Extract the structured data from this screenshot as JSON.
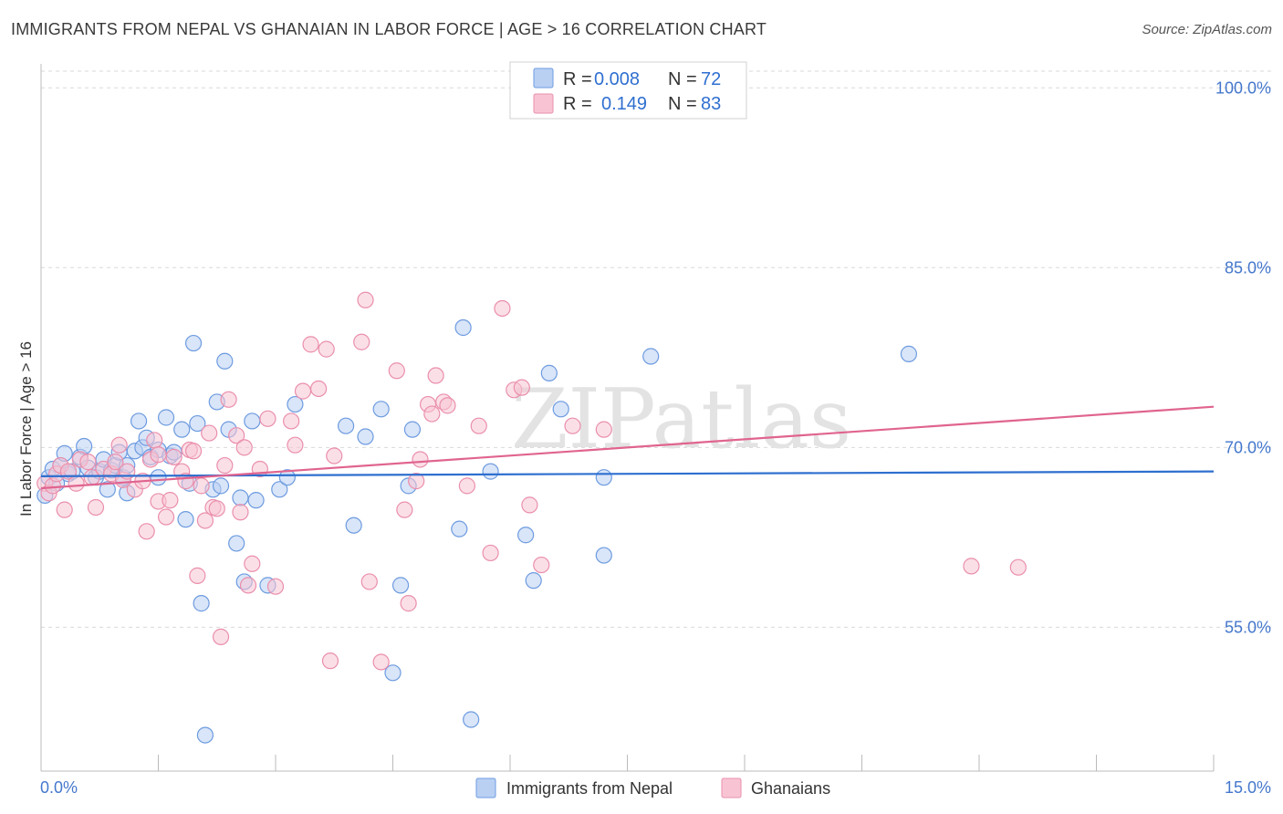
{
  "title": "IMMIGRANTS FROM NEPAL VS GHANAIAN IN LABOR FORCE | AGE > 16 CORRELATION CHART",
  "source": "Source: ZipAtlas.com",
  "watermark": "ZIPatlas",
  "colors": {
    "nepal_fill": "#b9d0f3",
    "nepal_stroke": "#6d9be0",
    "nepal_line": "#2e6fcf",
    "ghana_fill": "#f8c4d4",
    "ghana_stroke": "#ea8fac",
    "ghana_line": "#e0648f",
    "tick_label": "#4477cc",
    "grid": "#d9d9d9"
  },
  "legend": {
    "rows": [
      {
        "r_label": "R =",
        "r_value": "0.008",
        "n_label": "N =",
        "n_value": "72",
        "series": "nepal"
      },
      {
        "r_label": "R =",
        "r_value": "0.149",
        "n_label": "N =",
        "n_value": "83",
        "series": "ghana"
      }
    ]
  },
  "chart_data": {
    "type": "scatter",
    "title": "IMMIGRANTS FROM NEPAL VS GHANAIAN IN LABOR FORCE | AGE > 16 CORRELATION CHART",
    "xlabel": "",
    "ylabel": "In Labor Force | Age > 16",
    "xlim": [
      0,
      15
    ],
    "ylim": [
      43,
      102
    ],
    "x_tick_labels": [
      "0.0%",
      "15.0%"
    ],
    "y_ticks": [
      55,
      70,
      85,
      100
    ],
    "y_tick_labels": [
      "55.0%",
      "70.0%",
      "85.0%",
      "100.0%"
    ],
    "grid": true,
    "legend_position": "top-center",
    "series": [
      {
        "name": "Immigrants from Nepal",
        "r": 0.008,
        "n": 72,
        "trend": {
          "x": [
            0,
            15
          ],
          "y": [
            67.6,
            68.0
          ]
        },
        "points": [
          [
            0.05,
            66.0
          ],
          [
            0.1,
            67.5
          ],
          [
            0.15,
            68.2
          ],
          [
            0.2,
            67.0
          ],
          [
            0.25,
            68.5
          ],
          [
            0.3,
            69.5
          ],
          [
            0.35,
            67.8
          ],
          [
            0.4,
            68.0
          ],
          [
            0.5,
            69.2
          ],
          [
            0.55,
            70.1
          ],
          [
            0.6,
            68.3
          ],
          [
            0.7,
            67.5
          ],
          [
            0.75,
            68.0
          ],
          [
            0.8,
            69.0
          ],
          [
            0.85,
            66.5
          ],
          [
            0.9,
            68.1
          ],
          [
            0.95,
            68.5
          ],
          [
            1.0,
            69.6
          ],
          [
            1.05,
            67.5
          ],
          [
            1.1,
            68.5
          ],
          [
            1.1,
            66.2
          ],
          [
            1.2,
            69.7
          ],
          [
            1.25,
            72.2
          ],
          [
            1.3,
            70.0
          ],
          [
            1.35,
            70.8
          ],
          [
            1.4,
            69.2
          ],
          [
            1.5,
            69.8
          ],
          [
            1.5,
            67.5
          ],
          [
            1.6,
            72.5
          ],
          [
            1.65,
            69.3
          ],
          [
            1.7,
            69.6
          ],
          [
            1.8,
            71.5
          ],
          [
            1.85,
            64.0
          ],
          [
            1.9,
            67.0
          ],
          [
            1.95,
            78.7
          ],
          [
            2.0,
            72.0
          ],
          [
            2.05,
            57.0
          ],
          [
            2.1,
            46.0
          ],
          [
            2.2,
            66.5
          ],
          [
            2.25,
            73.8
          ],
          [
            2.3,
            66.8
          ],
          [
            2.35,
            77.2
          ],
          [
            2.4,
            71.5
          ],
          [
            2.5,
            62.0
          ],
          [
            2.55,
            65.8
          ],
          [
            2.6,
            58.8
          ],
          [
            2.7,
            72.2
          ],
          [
            2.75,
            65.6
          ],
          [
            2.9,
            58.5
          ],
          [
            3.05,
            66.5
          ],
          [
            3.15,
            67.5
          ],
          [
            3.25,
            73.6
          ],
          [
            3.9,
            71.8
          ],
          [
            4.0,
            63.5
          ],
          [
            4.15,
            70.9
          ],
          [
            4.35,
            73.2
          ],
          [
            4.5,
            51.2
          ],
          [
            4.6,
            58.5
          ],
          [
            4.7,
            66.8
          ],
          [
            4.75,
            71.5
          ],
          [
            5.35,
            63.2
          ],
          [
            5.4,
            80.0
          ],
          [
            5.5,
            47.3
          ],
          [
            5.75,
            68.0
          ],
          [
            6.2,
            62.7
          ],
          [
            6.3,
            58.9
          ],
          [
            6.5,
            76.2
          ],
          [
            6.65,
            73.2
          ],
          [
            7.2,
            61.0
          ],
          [
            7.2,
            67.5
          ],
          [
            7.8,
            77.6
          ],
          [
            11.1,
            77.8
          ]
        ]
      },
      {
        "name": "Ghanaians",
        "r": 0.149,
        "n": 83,
        "trend": {
          "x": [
            0,
            15
          ],
          "y": [
            66.6,
            73.4
          ]
        },
        "points": [
          [
            0.05,
            67.0
          ],
          [
            0.1,
            66.2
          ],
          [
            0.15,
            66.8
          ],
          [
            0.2,
            67.8
          ],
          [
            0.25,
            68.5
          ],
          [
            0.3,
            64.8
          ],
          [
            0.35,
            68.0
          ],
          [
            0.45,
            67.0
          ],
          [
            0.5,
            69.0
          ],
          [
            0.6,
            68.8
          ],
          [
            0.65,
            67.5
          ],
          [
            0.7,
            65.0
          ],
          [
            0.8,
            68.2
          ],
          [
            0.9,
            67.8
          ],
          [
            0.95,
            68.8
          ],
          [
            1.0,
            70.2
          ],
          [
            1.05,
            67.3
          ],
          [
            1.1,
            68.0
          ],
          [
            1.2,
            66.5
          ],
          [
            1.3,
            67.2
          ],
          [
            1.35,
            63.0
          ],
          [
            1.4,
            69.0
          ],
          [
            1.45,
            70.6
          ],
          [
            1.5,
            69.4
          ],
          [
            1.5,
            65.5
          ],
          [
            1.6,
            64.2
          ],
          [
            1.65,
            65.6
          ],
          [
            1.7,
            69.2
          ],
          [
            1.8,
            68.0
          ],
          [
            1.85,
            67.2
          ],
          [
            1.9,
            69.8
          ],
          [
            1.95,
            69.7
          ],
          [
            2.0,
            59.3
          ],
          [
            2.05,
            66.8
          ],
          [
            2.1,
            63.9
          ],
          [
            2.15,
            71.2
          ],
          [
            2.2,
            65.0
          ],
          [
            2.25,
            64.9
          ],
          [
            2.3,
            54.2
          ],
          [
            2.35,
            68.5
          ],
          [
            2.4,
            74.0
          ],
          [
            2.5,
            71.0
          ],
          [
            2.55,
            64.6
          ],
          [
            2.6,
            70.0
          ],
          [
            2.65,
            58.5
          ],
          [
            2.7,
            60.3
          ],
          [
            2.8,
            68.2
          ],
          [
            2.9,
            72.4
          ],
          [
            3.0,
            58.4
          ],
          [
            3.2,
            72.2
          ],
          [
            3.25,
            70.2
          ],
          [
            3.35,
            74.7
          ],
          [
            3.45,
            78.6
          ],
          [
            3.55,
            74.9
          ],
          [
            3.65,
            78.2
          ],
          [
            3.7,
            52.2
          ],
          [
            3.75,
            69.3
          ],
          [
            4.1,
            78.8
          ],
          [
            4.15,
            82.3
          ],
          [
            4.2,
            58.8
          ],
          [
            4.35,
            52.1
          ],
          [
            4.55,
            76.4
          ],
          [
            4.65,
            64.8
          ],
          [
            4.7,
            57.0
          ],
          [
            4.8,
            67.2
          ],
          [
            4.85,
            69.0
          ],
          [
            4.95,
            73.6
          ],
          [
            5.0,
            72.8
          ],
          [
            5.05,
            76.0
          ],
          [
            5.15,
            73.8
          ],
          [
            5.2,
            73.5
          ],
          [
            5.45,
            66.8
          ],
          [
            5.6,
            71.8
          ],
          [
            5.75,
            61.2
          ],
          [
            5.9,
            81.6
          ],
          [
            6.05,
            74.8
          ],
          [
            6.15,
            75.0
          ],
          [
            6.25,
            65.2
          ],
          [
            6.4,
            60.2
          ],
          [
            6.8,
            71.8
          ],
          [
            7.2,
            71.5
          ],
          [
            11.9,
            60.1
          ],
          [
            12.5,
            60.0
          ]
        ]
      }
    ]
  }
}
